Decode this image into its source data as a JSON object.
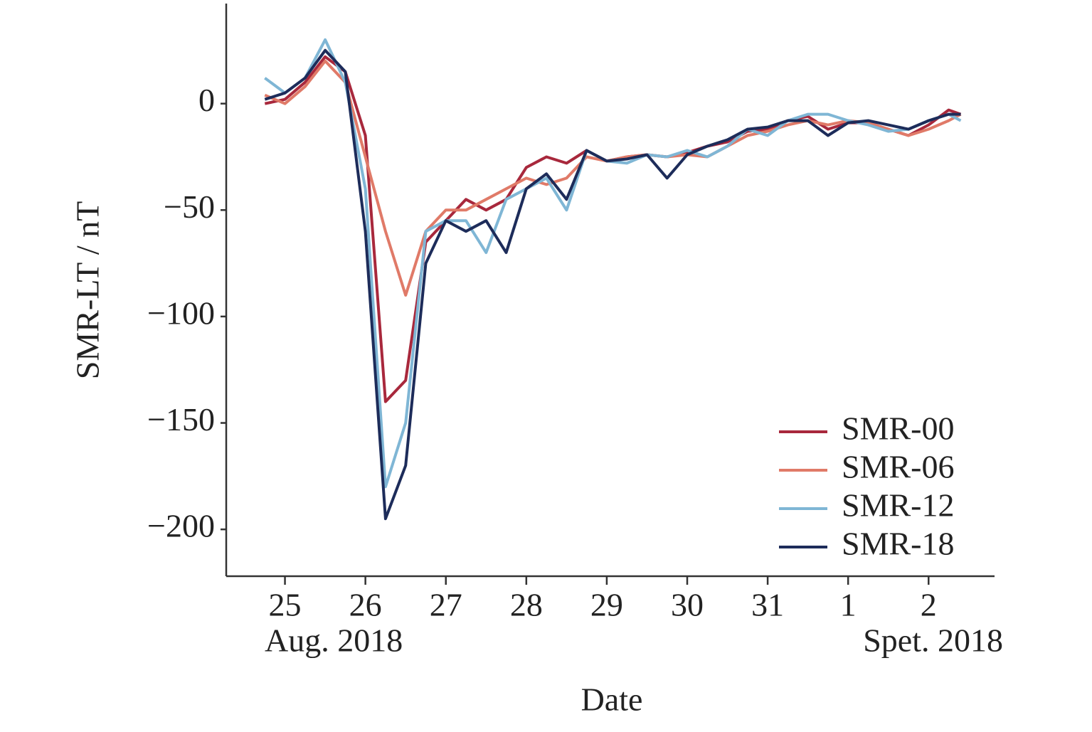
{
  "chart_data": {
    "type": "line",
    "xlabel": "Date",
    "ylabel": "SMR-LT / nT",
    "annotations": [
      "Aug. 2018",
      "Spet. 2018"
    ],
    "x": [
      24.75,
      25,
      25.25,
      25.5,
      25.75,
      26,
      26.25,
      26.5,
      26.75,
      27,
      27.25,
      27.5,
      27.75,
      28,
      28.25,
      28.5,
      28.75,
      29,
      29.25,
      29.5,
      29.75,
      30,
      30.25,
      30.5,
      30.75,
      31,
      31.25,
      31.5,
      31.75,
      32,
      32.25,
      32.5,
      32.75,
      33,
      33.25,
      33.4
    ],
    "series": [
      {
        "name": "SMR-00",
        "color": "#a8283c",
        "values": [
          0,
          2,
          10,
          22,
          15,
          -15,
          -140,
          -130,
          -65,
          -55,
          -45,
          -50,
          -45,
          -30,
          -25,
          -28,
          -22,
          -27,
          -25,
          -24,
          -25,
          -23,
          -20,
          -18,
          -13,
          -12,
          -8,
          -6,
          -12,
          -9,
          -9,
          -12,
          -15,
          -10,
          -3,
          -5
        ]
      },
      {
        "name": "SMR-06",
        "color": "#e07a68",
        "values": [
          4,
          0,
          8,
          20,
          10,
          -25,
          -60,
          -90,
          -60,
          -50,
          -50,
          -45,
          -40,
          -35,
          -38,
          -35,
          -25,
          -27,
          -25,
          -24,
          -25,
          -24,
          -25,
          -20,
          -15,
          -13,
          -10,
          -8,
          -10,
          -8,
          -9,
          -12,
          -15,
          -12,
          -8,
          -5
        ]
      },
      {
        "name": "SMR-12",
        "color": "#7fb6d5",
        "values": [
          12,
          5,
          12,
          30,
          10,
          -40,
          -180,
          -150,
          -60,
          -55,
          -55,
          -70,
          -45,
          -40,
          -35,
          -50,
          -22,
          -27,
          -28,
          -24,
          -25,
          -22,
          -25,
          -20,
          -12,
          -15,
          -8,
          -5,
          -5,
          -8,
          -10,
          -13,
          -12,
          -8,
          -5,
          -8
        ]
      },
      {
        "name": "SMR-18",
        "color": "#1d2c5a",
        "values": [
          2,
          5,
          12,
          25,
          15,
          -60,
          -195,
          -170,
          -75,
          -55,
          -60,
          -55,
          -70,
          -40,
          -33,
          -45,
          -22,
          -27,
          -26,
          -24,
          -35,
          -24,
          -20,
          -17,
          -12,
          -11,
          -8,
          -8,
          -15,
          -9,
          -8,
          -10,
          -12,
          -8,
          -5,
          -5
        ]
      }
    ],
    "xlim": [
      24.27,
      33.82
    ],
    "ylim": [
      -222,
      47
    ],
    "xticks": [
      25,
      26,
      27,
      28,
      29,
      30,
      31,
      {
        "value": 32,
        "label": "1"
      },
      {
        "value": 33,
        "label": "2"
      }
    ],
    "yticks": [
      {
        "value": 0,
        "label": "0"
      },
      {
        "value": -50,
        "label": "−50"
      },
      {
        "value": -100,
        "label": "−100"
      },
      {
        "value": -150,
        "label": "−150"
      },
      {
        "value": -200,
        "label": "−200"
      }
    ],
    "legend": "lower right"
  }
}
